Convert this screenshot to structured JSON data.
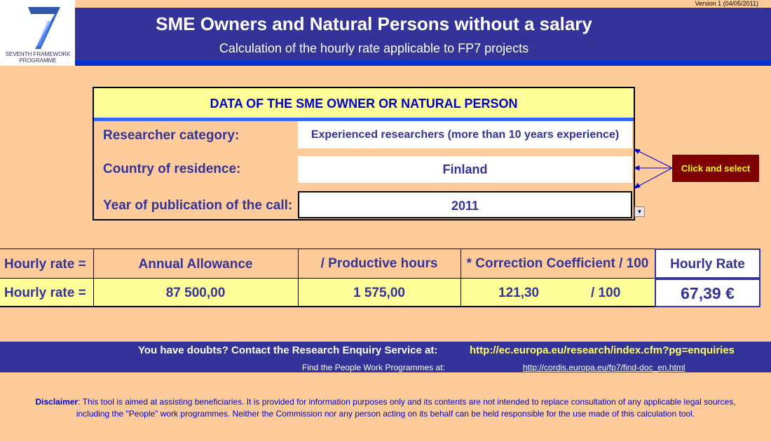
{
  "version": "Version 1 (04/05/2011)",
  "logo": {
    "text_line1": "SEVENTH FRAMEWORK",
    "text_line2": "PROGRAMME"
  },
  "header": {
    "title": "SME Owners and Natural Persons without a salary",
    "subtitle": "Calculation of the hourly rate applicable to FP7 projects"
  },
  "data_box": {
    "title": "DATA OF THE SME OWNER OR NATURAL PERSON",
    "category_label": "Researcher category:",
    "category_value": "Experienced researchers (more than 10 years experience)",
    "country_label": "Country of residence:",
    "country_value": "Finland",
    "year_label": "Year of publication of the call:",
    "year_value": "2011"
  },
  "click_select": "Click and select",
  "rate_table": {
    "header": {
      "label": "Hourly rate =",
      "annual": "Annual Allowance",
      "hours": "/ Productive hours",
      "coef": "* Correction Coefficient / 100",
      "result": "Hourly Rate"
    },
    "row": {
      "label": "Hourly rate =",
      "annual": "87 500,00",
      "hours": "1 575,00",
      "coef": "121,30",
      "div": "/ 100",
      "result": "67,39 €"
    }
  },
  "footer": {
    "question": "You have doubts? Contact the Research Enquiry Service at:",
    "link1": "http://ec.europa.eu/research/index.cfm?pg=enquiries",
    "find": "Find the People Work Programmes at:",
    "link2": "http://cordis.europa.eu/fp7/find-doc_en.html"
  },
  "disclaimer": {
    "label": "Disclaimer",
    "text_line1": ": This tool is aimed at assisting beneficiaries. It is provided for information purposes only and its contents are not intended to replace consultation of any applicable legal sources,",
    "text_line2": "including the \"People\" work programmes. Neither the Commission nor any person acting on its behalf can be held responsible for the use made of this calculation tool."
  },
  "colors": {
    "background": "#fecc9a",
    "header_band": "#333399",
    "accent_blue": "#0033cc",
    "highlight_yellow": "#ffff99",
    "button_maroon": "#800000"
  }
}
